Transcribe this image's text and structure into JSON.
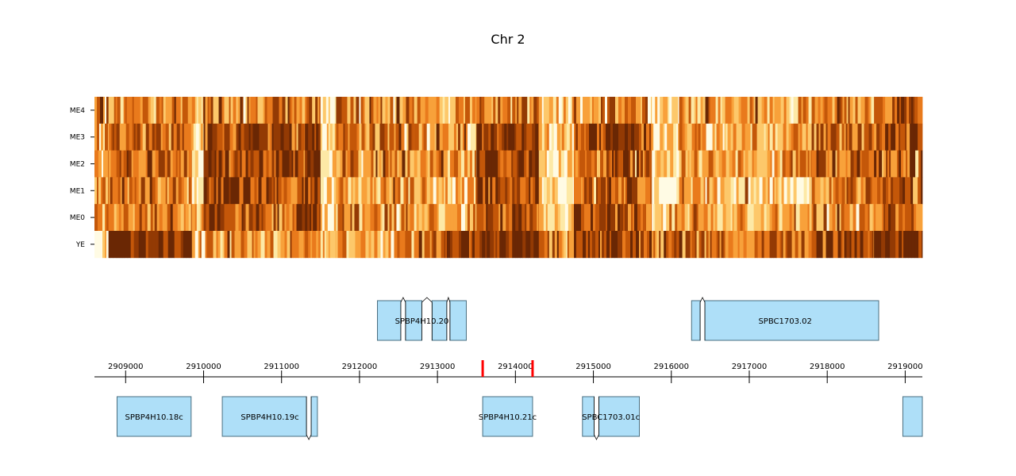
{
  "chart_data": {
    "type": "heatmap",
    "title": "Chr 2",
    "heatmap": {
      "rows": [
        "ME4",
        "ME3",
        "ME2",
        "ME1",
        "ME0",
        "YE"
      ],
      "xlim": [
        2908600,
        2919220
      ],
      "colormap": [
        "#fffbe4",
        "#fde9a6",
        "#fdc86a",
        "#f8a13a",
        "#e97a1c",
        "#c45709",
        "#933a04",
        "#6a2704"
      ],
      "value_range": [
        0,
        1
      ],
      "segments": [
        {
          "from": 2908600,
          "to": 2908780,
          "levels": [
            0.55,
            0.5,
            0.5,
            0.45,
            0.5,
            0.15
          ]
        },
        {
          "from": 2908780,
          "to": 2909850,
          "levels": [
            0.5,
            0.6,
            0.65,
            0.6,
            0.55,
            0.92
          ]
        },
        {
          "from": 2909850,
          "to": 2910000,
          "levels": [
            0.4,
            0.3,
            0.25,
            0.3,
            0.35,
            0.2
          ]
        },
        {
          "from": 2910000,
          "to": 2911300,
          "levels": [
            0.55,
            0.7,
            0.78,
            0.75,
            0.7,
            0.45
          ]
        },
        {
          "from": 2911300,
          "to": 2911500,
          "levels": [
            0.6,
            0.85,
            0.9,
            0.88,
            0.85,
            0.55
          ]
        },
        {
          "from": 2911500,
          "to": 2911700,
          "levels": [
            0.15,
            0.3,
            0.4,
            0.2,
            0.25,
            0.5
          ]
        },
        {
          "from": 2911700,
          "to": 2912700,
          "levels": [
            0.55,
            0.55,
            0.55,
            0.45,
            0.5,
            0.5
          ]
        },
        {
          "from": 2912700,
          "to": 2913100,
          "levels": [
            0.5,
            0.45,
            0.45,
            0.4,
            0.45,
            0.6
          ]
        },
        {
          "from": 2913100,
          "to": 2913500,
          "levels": [
            0.45,
            0.35,
            0.4,
            0.3,
            0.35,
            0.85
          ]
        },
        {
          "from": 2913500,
          "to": 2914300,
          "levels": [
            0.6,
            0.82,
            0.8,
            0.78,
            0.75,
            0.95
          ]
        },
        {
          "from": 2914300,
          "to": 2914750,
          "levels": [
            0.35,
            0.3,
            0.3,
            0.25,
            0.3,
            0.5
          ]
        },
        {
          "from": 2914750,
          "to": 2915750,
          "levels": [
            0.55,
            0.75,
            0.72,
            0.7,
            0.68,
            0.88
          ]
        },
        {
          "from": 2915750,
          "to": 2916100,
          "levels": [
            0.25,
            0.3,
            0.3,
            0.2,
            0.25,
            0.55
          ]
        },
        {
          "from": 2916100,
          "to": 2917800,
          "levels": [
            0.4,
            0.45,
            0.5,
            0.35,
            0.4,
            0.62
          ]
        },
        {
          "from": 2917800,
          "to": 2918600,
          "levels": [
            0.5,
            0.6,
            0.6,
            0.55,
            0.55,
            0.75
          ]
        },
        {
          "from": 2918600,
          "to": 2919220,
          "levels": [
            0.72,
            0.7,
            0.7,
            0.75,
            0.65,
            0.97
          ]
        }
      ]
    },
    "x_axis": {
      "ticks": [
        2909000,
        2910000,
        2911000,
        2912000,
        2913000,
        2914000,
        2915000,
        2916000,
        2917000,
        2918000,
        2919000
      ],
      "tick_labels": [
        "2909000",
        "2910000",
        "2911000",
        "2912000",
        "2913000",
        "2914000",
        "2915000",
        "2916000",
        "2917000",
        "2918000",
        "2919000"
      ]
    },
    "highlight_region": {
      "from": 2913580,
      "to": 2914220,
      "color": "#ff0000"
    },
    "genes": [
      {
        "label": "SPBP4H10.20",
        "strand": "+",
        "exons": [
          [
            2912230,
            2912530
          ],
          [
            2912590,
            2912800
          ],
          [
            2912930,
            2913120
          ],
          [
            2913160,
            2913370
          ]
        ]
      },
      {
        "label": "SPBC1703.02",
        "strand": "+",
        "exons": [
          [
            2916260,
            2916370
          ],
          [
            2916430,
            2918660
          ]
        ]
      },
      {
        "label": "SPBP4H10.18c",
        "strand": "-",
        "exons": [
          [
            2908890,
            2909840
          ]
        ]
      },
      {
        "label": "SPBP4H10.19c",
        "strand": "-",
        "exons": [
          [
            2910240,
            2911320
          ],
          [
            2911380,
            2911460
          ]
        ]
      },
      {
        "label": "SPBP4H10.21c",
        "strand": "-",
        "exons": [
          [
            2913580,
            2914220
          ]
        ]
      },
      {
        "label": "SPBC1703.01c",
        "strand": "-",
        "exons": [
          [
            2914860,
            2915010
          ],
          [
            2915070,
            2915590
          ]
        ]
      },
      {
        "label": "",
        "strand": "-",
        "exons": [
          [
            2918970,
            2919220
          ]
        ]
      }
    ],
    "xlabel": "",
    "ylabel": ""
  }
}
